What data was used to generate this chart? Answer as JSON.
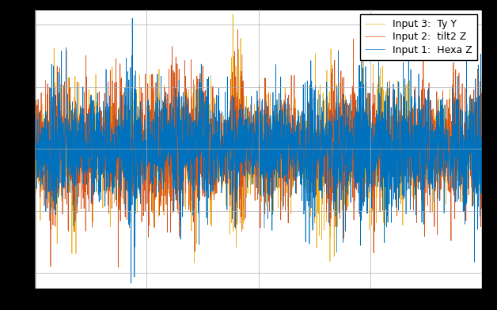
{
  "title": "",
  "xlabel": "",
  "ylabel": "",
  "legend_labels": [
    "Input 1:  Hexa Z",
    "Input 2:  tilt2 Z",
    "Input 3:  Ty Y"
  ],
  "colors": [
    "#0072BD",
    "#D95319",
    "#EDB120"
  ],
  "linewidth": 0.5,
  "n_points": 3000,
  "seed": 42,
  "background_color": "#FFFFFF",
  "outer_background": "#000000",
  "grid_color": "#AAAAAA",
  "figsize": [
    6.28,
    3.92
  ],
  "dpi": 100
}
